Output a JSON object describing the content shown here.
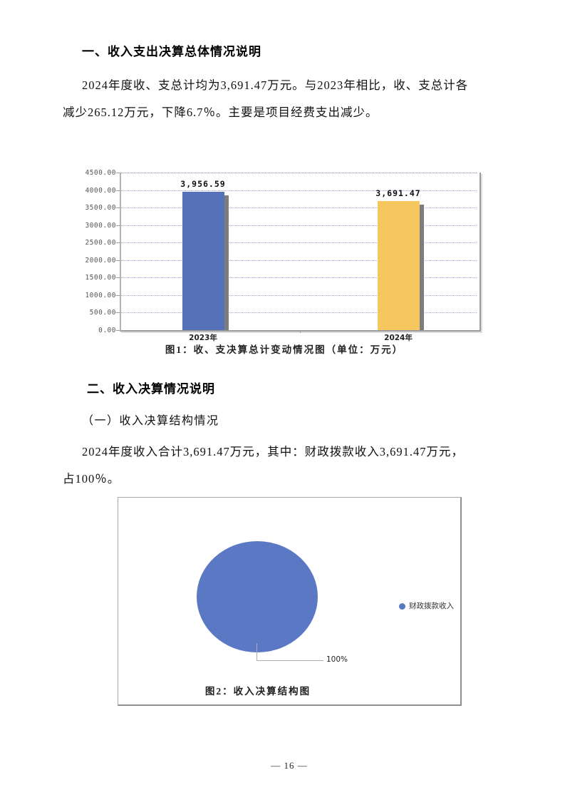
{
  "page": {
    "number_label": "— 16 —"
  },
  "section1": {
    "heading": "一、收入支出决算总体情况说明",
    "paragraph_lines": [
      "2024年度收、支总计均为3,691.47万元。与2023年相比，收、支总计各",
      "减少265.12万元，下降6.7％。主要是项目经费支出减少。"
    ]
  },
  "section2": {
    "heading": "二、收入决算情况说明",
    "subheading": "（一）收入决算结构情况",
    "paragraph_lines": [
      "2024年度收入合计3,691.47万元，其中：财政拨款收入3,691.47万元，",
      "占100％。"
    ]
  },
  "chart_data": [
    {
      "type": "bar",
      "title": "图1：收、支决算总计变动情况图（单位：万元）",
      "categories": [
        "2023年",
        "2024年"
      ],
      "values": [
        3956.59,
        3691.47
      ],
      "value_labels": [
        "3,956.59",
        "3,691.47"
      ],
      "bar_colors": [
        "#5572b8",
        "#f6c65f"
      ],
      "bar_shadow_color": "#7d7d7d",
      "xlabel": "",
      "ylabel": "",
      "ylim": [
        0,
        4500
      ],
      "ytick_step": 500,
      "ytick_labels": [
        "4500.00",
        "4000.00",
        "3500.00",
        "3000.00",
        "2500.00",
        "2000.00",
        "1500.00",
        "1000.00",
        "500.00",
        "0.00"
      ],
      "grid": true,
      "gridline_color": "#a0a4dc",
      "legend_position": "none"
    },
    {
      "type": "pie",
      "title": "图2：收入决算结构图",
      "slices": [
        {
          "label": "财政拨款收入",
          "value": 100,
          "percent_label": "100%",
          "color": "#5b78c5"
        }
      ],
      "legend_position": "right"
    }
  ]
}
